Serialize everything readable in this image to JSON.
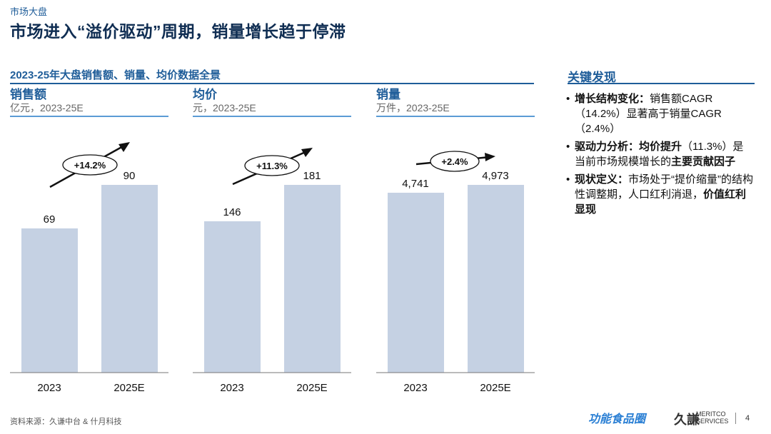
{
  "header": {
    "section": "市场大盘",
    "title": "市场进入“溢价驱动”周期，销量增长趋于停滞"
  },
  "subtitle": "2023-25年大盘销售额、销量、均价数据全景",
  "panels": [
    {
      "title": "销售额",
      "unit": "亿元，2023-25E",
      "growth": "+14.2%",
      "labels": [
        "69",
        "90"
      ]
    },
    {
      "title": "均价",
      "unit": "元，2023-25E",
      "growth": "+11.3%",
      "labels": [
        "146",
        "181"
      ]
    },
    {
      "title": "销量",
      "unit": "万件，2023-25E",
      "growth": "+2.4%",
      "labels": [
        "4,741",
        "4,973"
      ]
    }
  ],
  "chart_data": [
    {
      "type": "bar",
      "title": "销售额",
      "subtitle": "亿元，2023-25E",
      "categories": [
        "2023",
        "2025E"
      ],
      "values": [
        69,
        90
      ],
      "annotation": "+14.2%",
      "ylim": [
        0,
        100
      ]
    },
    {
      "type": "bar",
      "title": "均价",
      "subtitle": "元，2023-25E",
      "categories": [
        "2023",
        "2025E"
      ],
      "values": [
        146,
        181
      ],
      "annotation": "+11.3%",
      "ylim": [
        0,
        200
      ]
    },
    {
      "type": "bar",
      "title": "销量",
      "subtitle": "万件，2023-25E",
      "categories": [
        "2023",
        "2025E"
      ],
      "values": [
        4741,
        4973
      ],
      "annotation": "+2.4%",
      "ylim": [
        0,
        5500
      ]
    }
  ],
  "findings": {
    "title": "关键发现",
    "items": [
      {
        "bold": "增长结构变化：",
        "text": "销售额CAGR（14.2%）显著高于销量CAGR（2.4%）",
        "tail": ""
      },
      {
        "bold": "驱动力分析：均价提升",
        "text": "（11.3%）是当前市场规模增长的",
        "tail": "主要贡献因子"
      },
      {
        "bold": "现状定义：",
        "text": "市场处于“提价缩量”的结构性调整期，人口红利消退，",
        "tail": "价值红利显现"
      }
    ]
  },
  "footer": {
    "source": "资料来源：久谦中台 & 什月科技",
    "logo_left": "功能食品圈",
    "logo_mid": "久謙",
    "logo_right_1": "MERITCO",
    "logo_right_2": "SERVICES",
    "page": "4"
  },
  "colors": {
    "bar": "#c5d1e3",
    "accent": "#1f5d99",
    "title": "#0f2d52"
  }
}
